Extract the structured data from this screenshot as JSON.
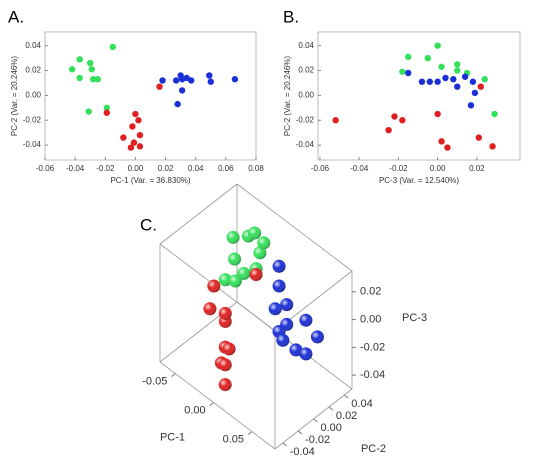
{
  "chart_data": [
    {
      "type": "scatter",
      "label": "A.",
      "xlabel": "PC-1 (Var. = 36.830%)",
      "ylabel": "PC-2 (Var. = 20.246%)",
      "xlim": [
        -0.06,
        0.08
      ],
      "ylim": [
        -0.052,
        0.051
      ],
      "xticks": [
        -0.06,
        -0.04,
        -0.02,
        {
          "value": 0,
          "label": "0.00"
        },
        0.02,
        0.04,
        0.06,
        0.08
      ],
      "yticks": [
        -0.04,
        -0.02,
        {
          "value": 0,
          "label": "0.00"
        },
        0.02,
        0.04
      ],
      "series": [
        {
          "color": "#33e05a",
          "x": [
            -0.042,
            -0.037,
            -0.03,
            -0.029,
            -0.037,
            -0.028,
            -0.025,
            -0.015,
            -0.031,
            -0.019
          ],
          "values": [
            0.021,
            0.029,
            0.026,
            0.021,
            0.014,
            0.013,
            0.013,
            0.039,
            -0.013,
            -0.01
          ]
        },
        {
          "color": "#e02020",
          "x": [
            -0.019,
            0.016,
            0.0,
            0.002,
            -0.002,
            -0.008,
            0.003,
            -0.001,
            0.003,
            -0.003
          ],
          "values": [
            -0.014,
            0.007,
            -0.015,
            -0.02,
            -0.025,
            -0.034,
            -0.032,
            -0.038,
            -0.041,
            -0.042
          ]
        },
        {
          "color": "#1a2fd6",
          "x": [
            0.018,
            0.027,
            0.031,
            0.034,
            0.037,
            0.03,
            0.049,
            0.05,
            0.066,
            0.028,
            0.031
          ],
          "values": [
            0.012,
            0.012,
            0.013,
            0.014,
            0.012,
            0.016,
            0.016,
            0.011,
            0.013,
            -0.007,
            0.004
          ]
        }
      ]
    },
    {
      "type": "scatter",
      "label": "B.",
      "xlabel": "PC-3 (Var. = 12.540%)",
      "ylabel": "PC-2 (Var. = 20.246%)",
      "xlim": [
        -0.061,
        0.042
      ],
      "ylim": [
        -0.052,
        0.051
      ],
      "xticks": [
        -0.06,
        -0.04,
        -0.02,
        {
          "value": 0,
          "label": "0.00"
        },
        0.02
      ],
      "yticks": [
        -0.04,
        -0.02,
        {
          "value": 0,
          "label": "0.00"
        },
        0.02,
        0.04
      ],
      "series": [
        {
          "color": "#33e05a",
          "x": [
            0.0,
            -0.015,
            0.002,
            0.01,
            0.015,
            0.024,
            0.029,
            -0.018,
            0.01,
            -0.005
          ],
          "values": [
            0.04,
            0.031,
            0.023,
            0.02,
            0.018,
            0.013,
            -0.015,
            0.019,
            0.025,
            0.03
          ]
        },
        {
          "color": "#e02020",
          "x": [
            -0.052,
            -0.025,
            -0.018,
            -0.022,
            0.0,
            0.002,
            0.005,
            0.021,
            0.028,
            0.022
          ],
          "values": [
            -0.02,
            -0.028,
            -0.02,
            -0.017,
            -0.015,
            -0.037,
            -0.042,
            -0.034,
            -0.041,
            0.007
          ]
        },
        {
          "color": "#1a2fd6",
          "x": [
            -0.015,
            -0.008,
            -0.004,
            0.0,
            0.004,
            0.008,
            0.014,
            0.018,
            0.01,
            0.019,
            0.017
          ],
          "values": [
            0.018,
            0.011,
            0.011,
            0.011,
            0.014,
            0.013,
            0.015,
            0.011,
            0.007,
            0.002,
            -0.008
          ]
        }
      ]
    },
    {
      "type": "scatter3d",
      "label": "C.",
      "xlabel": "PC-1",
      "ylabel": "PC-2",
      "zlabel": "PC-3",
      "xlim": [
        -0.07,
        0.08
      ],
      "ylim": [
        -0.05,
        0.05
      ],
      "zlim": [
        -0.05,
        0.035
      ],
      "xticks": [
        -0.05,
        {
          "value": 0,
          "label": "0.00"
        },
        0.05
      ],
      "yticks": [
        -0.04,
        -0.02,
        {
          "value": 0,
          "label": "0.00"
        },
        0.02,
        0.04
      ],
      "zticks": [
        -0.04,
        -0.02,
        {
          "value": 0,
          "label": "0.00"
        },
        0.02
      ],
      "series": [
        {
          "color": "#33e05a",
          "x": [
            -0.045,
            -0.03,
            -0.025,
            -0.02,
            -0.035,
            -0.015,
            -0.025,
            -0.04,
            -0.03,
            -0.02
          ],
          "y": [
            0.02,
            0.025,
            0.028,
            0.03,
            0.012,
            0.02,
            0.014,
            0.005,
            0.008,
            0.035
          ],
          "z": [
            0.02,
            0.025,
            0.028,
            0.015,
            0.012,
            0.01,
            0.005,
            -0.002,
            0.0,
            0.02
          ]
        },
        {
          "color": "#e02020",
          "x": [
            -0.04,
            -0.035,
            -0.02,
            -0.015,
            -0.01,
            0.0,
            -0.005,
            0.005,
            0.01,
            -0.01
          ],
          "y": [
            -0.01,
            -0.02,
            -0.015,
            -0.02,
            -0.025,
            -0.03,
            -0.035,
            -0.04,
            -0.045,
            0.015
          ],
          "z": [
            0.0,
            -0.01,
            -0.015,
            -0.005,
            -0.025,
            -0.02,
            -0.03,
            -0.025,
            -0.035,
            0.01
          ]
        },
        {
          "color": "#1a2fd6",
          "x": [
            0.01,
            0.015,
            0.02,
            0.03,
            0.035,
            0.03,
            0.04,
            0.045,
            0.05,
            0.055,
            0.06
          ],
          "y": [
            0.025,
            0.02,
            0.01,
            0.015,
            0.01,
            0.005,
            0.0,
            0.012,
            0.02,
            0.015,
            0.025
          ],
          "z": [
            0.02,
            0.01,
            0.0,
            0.005,
            -0.005,
            -0.01,
            -0.01,
            -0.02,
            0.0,
            -0.02,
            -0.01
          ]
        }
      ]
    }
  ]
}
